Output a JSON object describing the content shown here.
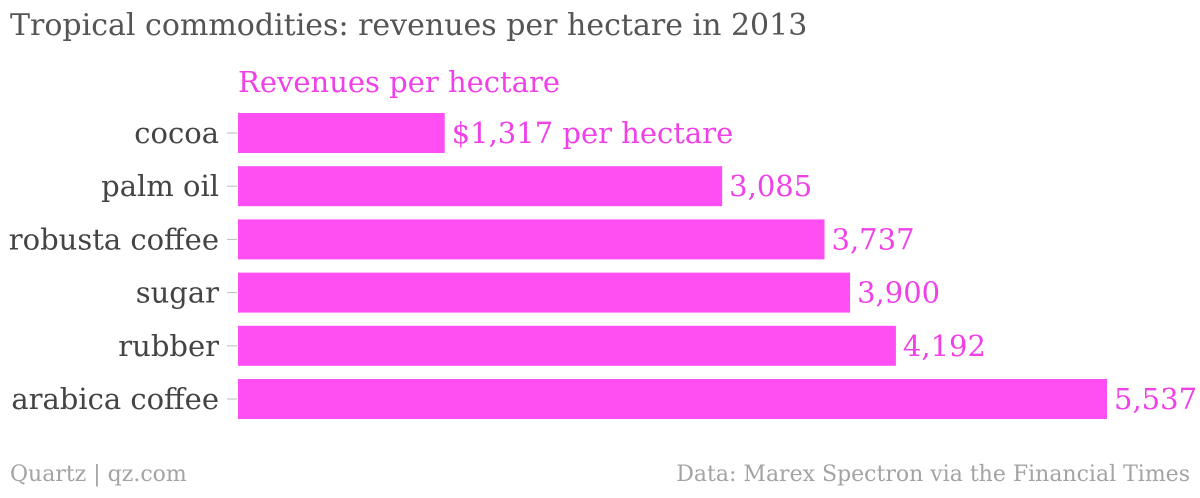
{
  "title": "Tropical commodities: revenues per hectare in 2013",
  "footer": {
    "left": "Quartz | qz.com",
    "right": "Data: Marex Spectron via the Financial Times"
  },
  "colors": {
    "bar": "#ff4ef2",
    "label": "#f040e8",
    "tick": "#bbbbbb"
  },
  "chart_data": {
    "type": "bar",
    "orientation": "horizontal",
    "series": [
      {
        "name": "Revenues per hectare",
        "values": [
          1317,
          3085,
          3737,
          3900,
          4192,
          5537
        ]
      }
    ],
    "categories": [
      "cocoa",
      "palm oil",
      "robusta coffee",
      "sugar",
      "rubber",
      "arabica coffee"
    ],
    "value_labels": [
      "$1,317 per hectare",
      "3,085",
      "3,737",
      "3,900",
      "4,192",
      "5,537"
    ],
    "xlim": [
      0,
      5537
    ],
    "grid": false
  }
}
